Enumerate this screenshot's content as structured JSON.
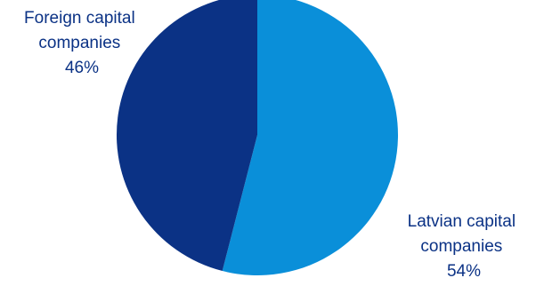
{
  "chart_data": {
    "type": "pie",
    "title": "",
    "start_angle_deg": 0,
    "direction": "clockwise",
    "slices": [
      {
        "label_line1": "Latvian capital",
        "label_line2": "companies",
        "value": 54,
        "value_label": "54%",
        "color": "#0a8fd9"
      },
      {
        "label_line1": "Foreign capital",
        "label_line2": "companies",
        "value": 46,
        "value_label": "46%",
        "color": "#0b3285"
      }
    ],
    "label_color": "#0b3285"
  }
}
